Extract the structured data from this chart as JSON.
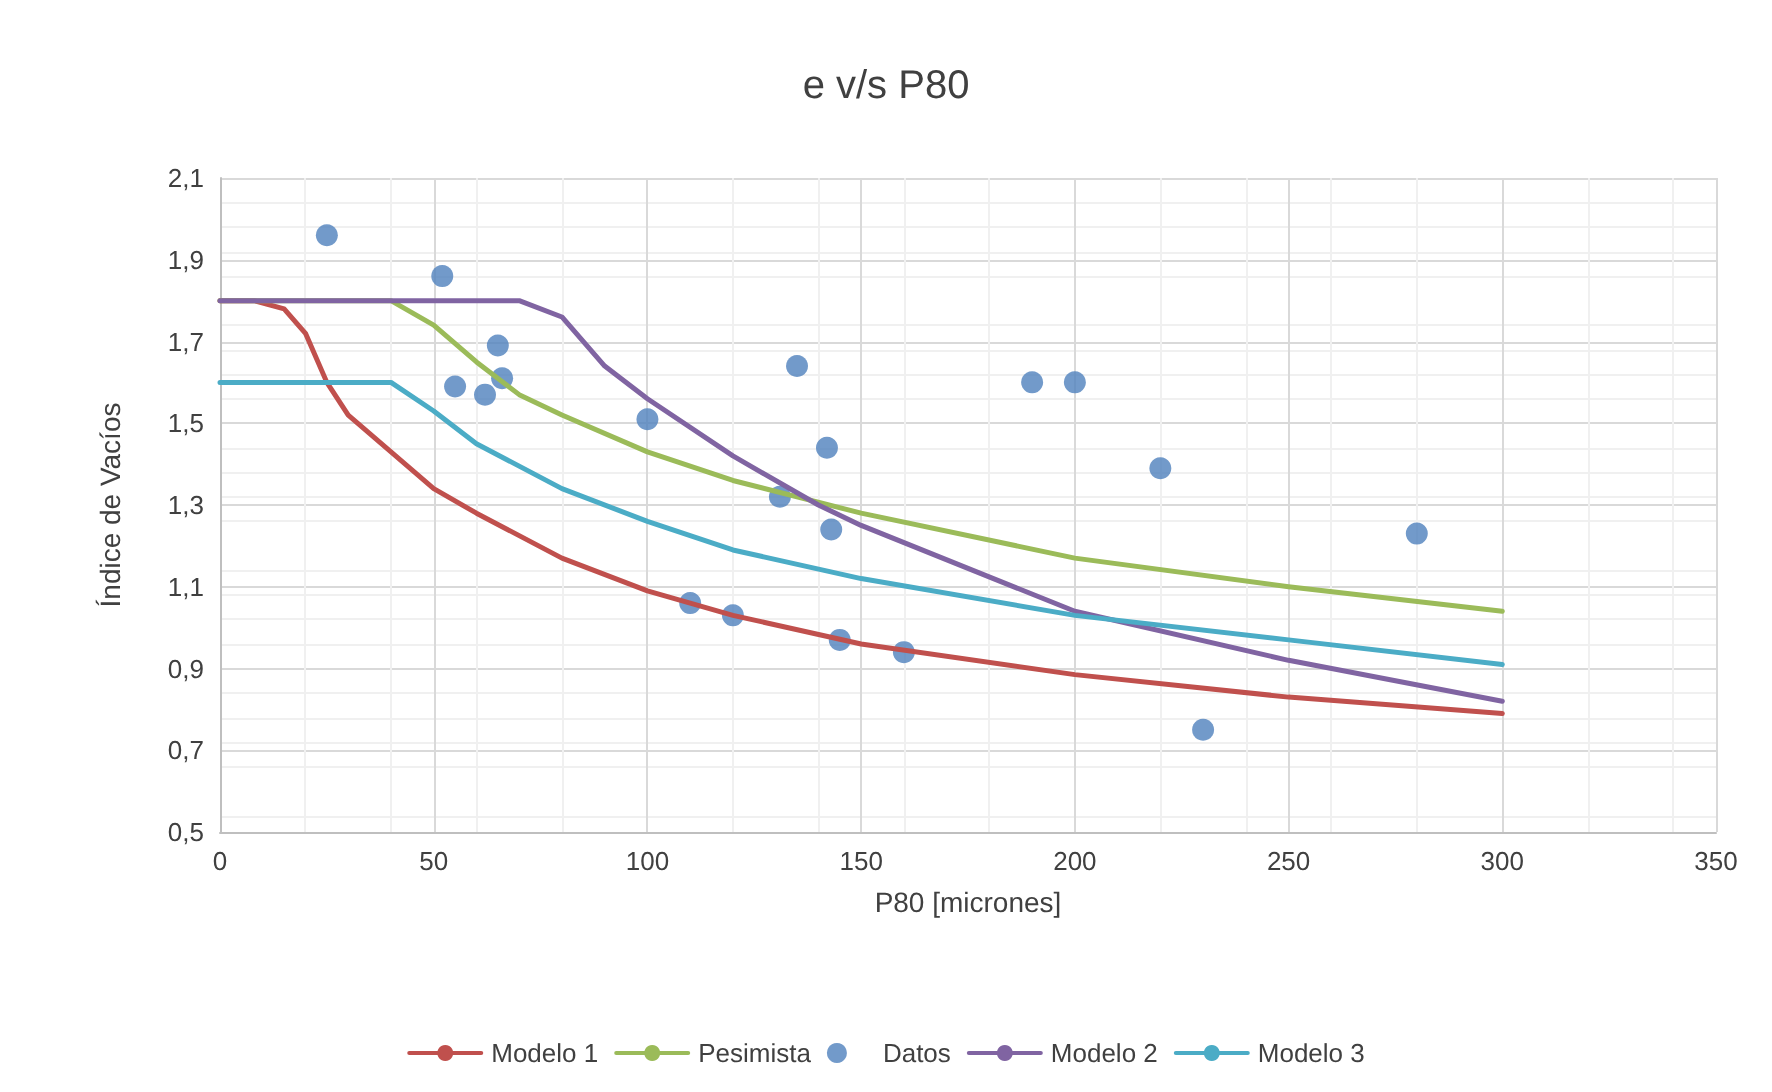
{
  "chart_data": {
    "type": "line",
    "title": "e v/s P80",
    "xlabel": "P80 [micrones]",
    "ylabel": "Índice de Vacíos",
    "xlim": [
      0,
      350
    ],
    "xticks": [
      0,
      50,
      100,
      150,
      200,
      250,
      300,
      350
    ],
    "ylim": [
      0.5,
      2.1
    ],
    "yticks": [
      {
        "value": 0.5,
        "label": "0,5"
      },
      {
        "value": 0.7,
        "label": "0,7"
      },
      {
        "value": 0.9,
        "label": "0,9"
      },
      {
        "value": 1.1,
        "label": "1,1"
      },
      {
        "value": 1.3,
        "label": "1,3"
      },
      {
        "value": 1.5,
        "label": "1,5"
      },
      {
        "value": 1.7,
        "label": "1,7"
      },
      {
        "value": 1.9,
        "label": "1,9"
      },
      {
        "value": 2.1,
        "label": "2,1"
      }
    ],
    "grid": true,
    "legend": "bottom",
    "marker": "none",
    "line_style": "solid",
    "series": [
      {
        "name": "Modelo 1",
        "color": "#c0504d",
        "x": [
          0,
          8,
          15,
          20,
          25,
          30,
          40,
          50,
          60,
          80,
          100,
          120,
          150,
          200,
          250,
          300
        ],
        "values": [
          1.8,
          1.8,
          1.78,
          1.72,
          1.6,
          1.52,
          1.43,
          1.34,
          1.28,
          1.17,
          1.09,
          1.03,
          0.96,
          0.885,
          0.83,
          0.79
        ]
      },
      {
        "name": "Pesimista",
        "color": "#9bbb59",
        "x": [
          0,
          40,
          50,
          60,
          70,
          80,
          100,
          120,
          150,
          200,
          250,
          300
        ],
        "values": [
          1.8,
          1.8,
          1.74,
          1.65,
          1.57,
          1.52,
          1.43,
          1.36,
          1.28,
          1.17,
          1.1,
          1.04
        ]
      },
      {
        "name": "Datos",
        "type": "scatter",
        "marker": "circle",
        "color": "#4f81bd",
        "x": [
          25,
          52,
          55,
          62,
          65,
          66,
          100,
          110,
          120,
          131,
          135,
          142,
          143,
          145,
          160,
          190,
          200,
          220,
          230,
          280
        ],
        "values": [
          1.96,
          1.86,
          1.59,
          1.57,
          1.69,
          1.61,
          1.51,
          1.06,
          1.03,
          1.32,
          1.64,
          1.44,
          1.24,
          0.97,
          0.94,
          1.6,
          1.6,
          1.39,
          0.75,
          1.23
        ]
      },
      {
        "name": "Modelo 2",
        "color": "#8064a2",
        "x": [
          0,
          70,
          80,
          90,
          100,
          120,
          140,
          150,
          200,
          250,
          300
        ],
        "values": [
          1.8,
          1.8,
          1.76,
          1.64,
          1.56,
          1.42,
          1.3,
          1.25,
          1.04,
          0.92,
          0.82
        ]
      },
      {
        "name": "Modelo 3",
        "color": "#4bacc6",
        "x": [
          0,
          40,
          50,
          60,
          80,
          100,
          120,
          150,
          200,
          250,
          300
        ],
        "values": [
          1.6,
          1.6,
          1.53,
          1.45,
          1.34,
          1.26,
          1.19,
          1.12,
          1.03,
          0.97,
          0.91
        ]
      }
    ]
  }
}
